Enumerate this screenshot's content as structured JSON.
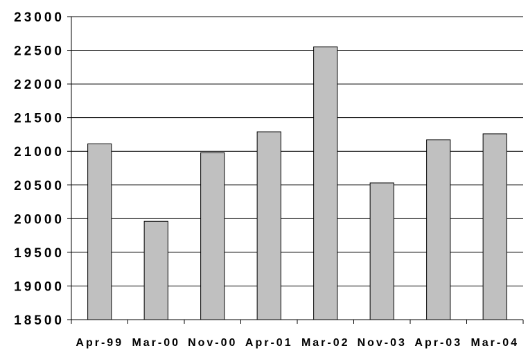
{
  "chart_data": {
    "type": "bar",
    "categories": [
      "Apr-99",
      "Mar-00",
      "Nov-00",
      "Apr-01",
      "Mar-02",
      "Nov-03",
      "Apr-03",
      "Mar-04"
    ],
    "values": [
      21110,
      19960,
      20980,
      21290,
      22550,
      20530,
      21170,
      21260
    ],
    "ylim": [
      18500,
      23000
    ],
    "yticks": [
      18500,
      19000,
      19500,
      20000,
      20500,
      21000,
      21500,
      22000,
      22500,
      23000
    ],
    "grid": true,
    "legend": "none",
    "bar_color": "#c0c0c0",
    "bar_edge_color": "#000000",
    "grid_color": "#000000"
  }
}
